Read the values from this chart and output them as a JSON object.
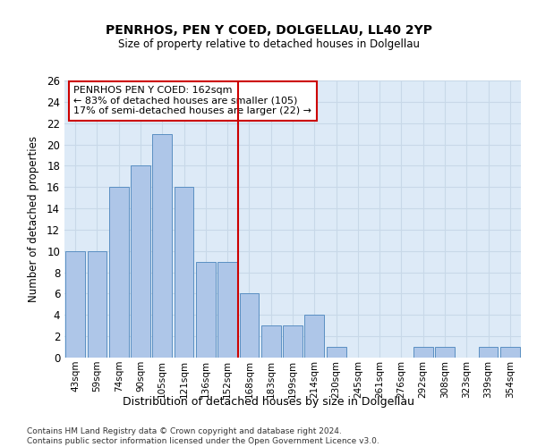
{
  "title": "PENRHOS, PEN Y COED, DOLGELLAU, LL40 2YP",
  "subtitle": "Size of property relative to detached houses in Dolgellau",
  "xlabel": "Distribution of detached houses by size in Dolgellau",
  "ylabel": "Number of detached properties",
  "bar_labels": [
    "43sqm",
    "59sqm",
    "74sqm",
    "90sqm",
    "105sqm",
    "121sqm",
    "136sqm",
    "152sqm",
    "168sqm",
    "183sqm",
    "199sqm",
    "214sqm",
    "230sqm",
    "245sqm",
    "261sqm",
    "276sqm",
    "292sqm",
    "308sqm",
    "323sqm",
    "339sqm",
    "354sqm"
  ],
  "bar_values": [
    10,
    10,
    16,
    18,
    21,
    16,
    9,
    9,
    6,
    3,
    3,
    4,
    1,
    0,
    0,
    0,
    1,
    1,
    0,
    1,
    1
  ],
  "bar_color": "#aec6e8",
  "bar_edgecolor": "#5a8fc2",
  "vline_x": 7.5,
  "vline_color": "#cc0000",
  "annotation_text": "PENRHOS PEN Y COED: 162sqm\n← 83% of detached houses are smaller (105)\n17% of semi-detached houses are larger (22) →",
  "annotation_box_color": "#ffffff",
  "annotation_box_edgecolor": "#cc0000",
  "ylim": [
    0,
    26
  ],
  "yticks": [
    0,
    2,
    4,
    6,
    8,
    10,
    12,
    14,
    16,
    18,
    20,
    22,
    24,
    26
  ],
  "grid_color": "#c8d8e8",
  "background_color": "#ddeaf7",
  "footer_line1": "Contains HM Land Registry data © Crown copyright and database right 2024.",
  "footer_line2": "Contains public sector information licensed under the Open Government Licence v3.0."
}
